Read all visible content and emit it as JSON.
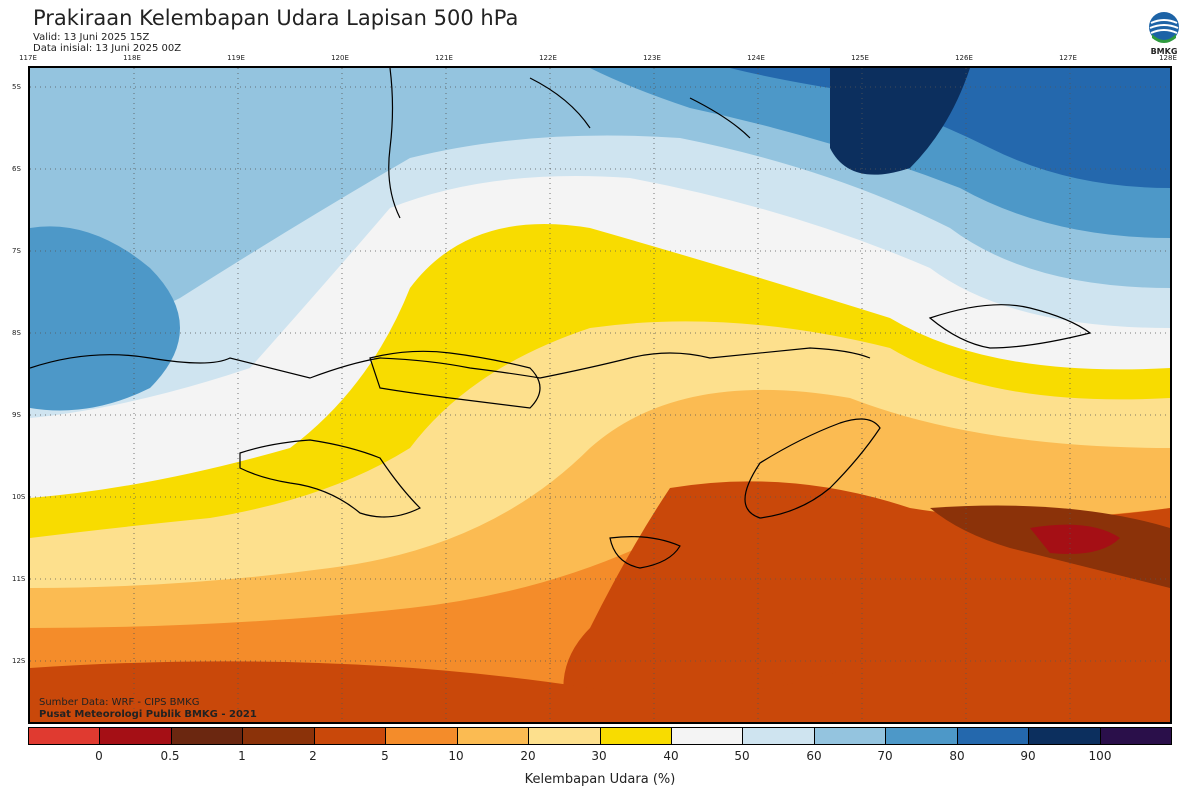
{
  "header": {
    "title": "Prakiraan Kelembapan Udara Lapisan 500 hPa",
    "valid": "Valid: 13 Juni 2025 15Z",
    "initial": "Data inisial: 13 Juni 2025 00Z"
  },
  "logo": {
    "text": "BMKG",
    "icon": "bmkg-logo-icon"
  },
  "axes": {
    "longitudes": [
      "117E",
      "118E",
      "119E",
      "120E",
      "121E",
      "122E",
      "123E",
      "124E",
      "125E",
      "126E",
      "127E",
      "128E"
    ],
    "latitudes": [
      "5S",
      "6S",
      "7S",
      "8S",
      "9S",
      "10S",
      "11S",
      "12S"
    ]
  },
  "credits": {
    "source": "Sumber Data: WRF - CIPS BMKG",
    "center": "Pusat Meteorologi Publik BMKG - 2021"
  },
  "colorbar": {
    "title": "Kelembapan Udara (%)",
    "ticks": [
      "0",
      "0.5",
      "1",
      "2",
      "5",
      "10",
      "20",
      "30",
      "40",
      "50",
      "60",
      "70",
      "80",
      "90",
      "100"
    ],
    "colors": [
      "#e03a30",
      "#a50f15",
      "#6b2710",
      "#8b3209",
      "#c9480a",
      "#f48c2a",
      "#fbbb52",
      "#fde08d",
      "#f8dc00",
      "#f4f4f4",
      "#cfe4f0",
      "#94c4df",
      "#4d98c8",
      "#2468ad",
      "#0c2f5e",
      "#2a0f4a"
    ]
  },
  "colors": {
    "very_dry": "#a50f15",
    "dry": "#c9480a",
    "moderate": "#fbbb52",
    "neutral": "#f4f4f4",
    "humid": "#94c4df",
    "very_humid": "#0c2f5e"
  }
}
